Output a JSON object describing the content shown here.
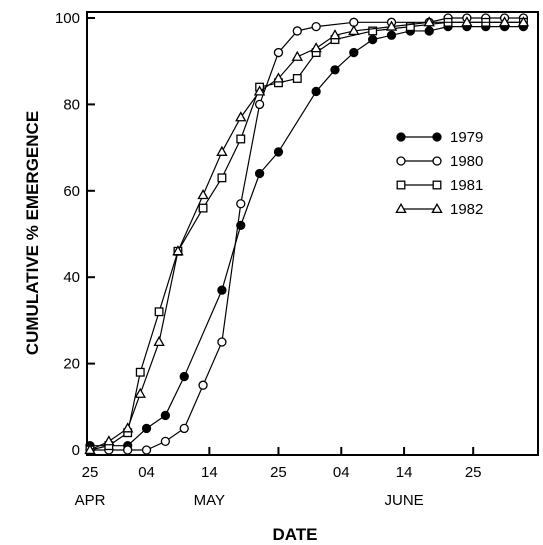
{
  "chart_data": {
    "type": "line",
    "title": "",
    "xlabel": "DATE",
    "ylabel": "CUMULATIVE % EMERGENCE",
    "xlim": [
      "04-25",
      "07-05"
    ],
    "ylim": [
      0,
      100
    ],
    "yticks": [
      0,
      20,
      40,
      60,
      80,
      100
    ],
    "xticks": [
      {
        "date": "04-25",
        "label": "25"
      },
      {
        "date": "05-04",
        "label": "04"
      },
      {
        "date": "05-14",
        "label": "14"
      },
      {
        "date": "05-25",
        "label": "25"
      },
      {
        "date": "06-04",
        "label": "04"
      },
      {
        "date": "06-14",
        "label": "14"
      },
      {
        "date": "06-25",
        "label": "25"
      }
    ],
    "months": [
      {
        "label": "APR",
        "date": "04-25"
      },
      {
        "label": "MAY",
        "date": "05-14"
      },
      {
        "label": "JUNE",
        "date": "06-14"
      }
    ],
    "legend_position": "right",
    "series": [
      {
        "name": "1979",
        "marker": "filled-circle",
        "points": [
          [
            "04-25",
            1
          ],
          [
            "05-01",
            1
          ],
          [
            "05-04",
            5
          ],
          [
            "05-07",
            8
          ],
          [
            "05-10",
            17
          ],
          [
            "05-16",
            37
          ],
          [
            "05-19",
            52
          ],
          [
            "05-22",
            64
          ],
          [
            "05-25",
            69
          ],
          [
            "05-31",
            83
          ],
          [
            "06-03",
            88
          ],
          [
            "06-06",
            92
          ],
          [
            "06-09",
            95
          ],
          [
            "06-12",
            96
          ],
          [
            "06-15",
            97
          ],
          [
            "06-18",
            97
          ],
          [
            "06-21",
            98
          ],
          [
            "06-24",
            98
          ],
          [
            "06-27",
            98
          ],
          [
            "06-30",
            98
          ],
          [
            "07-03",
            98
          ]
        ]
      },
      {
        "name": "1980",
        "marker": "open-circle",
        "points": [
          [
            "04-25",
            0
          ],
          [
            "04-28",
            0
          ],
          [
            "05-01",
            0
          ],
          [
            "05-04",
            0
          ],
          [
            "05-07",
            2
          ],
          [
            "05-10",
            5
          ],
          [
            "05-13",
            15
          ],
          [
            "05-16",
            25
          ],
          [
            "05-19",
            57
          ],
          [
            "05-22",
            80
          ],
          [
            "05-25",
            92
          ],
          [
            "05-28",
            97
          ],
          [
            "05-31",
            98
          ],
          [
            "06-06",
            99
          ],
          [
            "06-12",
            99
          ],
          [
            "06-18",
            99
          ],
          [
            "06-21",
            100
          ],
          [
            "06-24",
            100
          ],
          [
            "06-27",
            100
          ],
          [
            "06-30",
            100
          ],
          [
            "07-03",
            100
          ]
        ]
      },
      {
        "name": "1981",
        "marker": "open-square",
        "points": [
          [
            "04-25",
            0
          ],
          [
            "04-28",
            1
          ],
          [
            "05-01",
            4
          ],
          [
            "05-03",
            18
          ],
          [
            "05-06",
            32
          ],
          [
            "05-09",
            46
          ],
          [
            "05-13",
            56
          ],
          [
            "05-16",
            63
          ],
          [
            "05-19",
            72
          ],
          [
            "05-22",
            84
          ],
          [
            "05-25",
            85
          ],
          [
            "05-28",
            86
          ],
          [
            "05-31",
            92
          ],
          [
            "06-03",
            95
          ],
          [
            "06-09",
            97
          ],
          [
            "06-15",
            98
          ],
          [
            "06-21",
            99
          ],
          [
            "06-27",
            99
          ],
          [
            "07-03",
            99
          ]
        ]
      },
      {
        "name": "1982",
        "marker": "open-triangle",
        "points": [
          [
            "04-25",
            0
          ],
          [
            "04-28",
            2
          ],
          [
            "05-01",
            5
          ],
          [
            "05-03",
            13
          ],
          [
            "05-06",
            25
          ],
          [
            "05-09",
            46
          ],
          [
            "05-13",
            59
          ],
          [
            "05-16",
            69
          ],
          [
            "05-19",
            77
          ],
          [
            "05-22",
            83
          ],
          [
            "05-25",
            86
          ],
          [
            "05-28",
            91
          ],
          [
            "05-31",
            93
          ],
          [
            "06-03",
            96
          ],
          [
            "06-06",
            97
          ],
          [
            "06-12",
            98
          ],
          [
            "06-18",
            99
          ],
          [
            "06-24",
            99
          ],
          [
            "06-30",
            99
          ],
          [
            "07-03",
            99
          ]
        ]
      }
    ]
  }
}
